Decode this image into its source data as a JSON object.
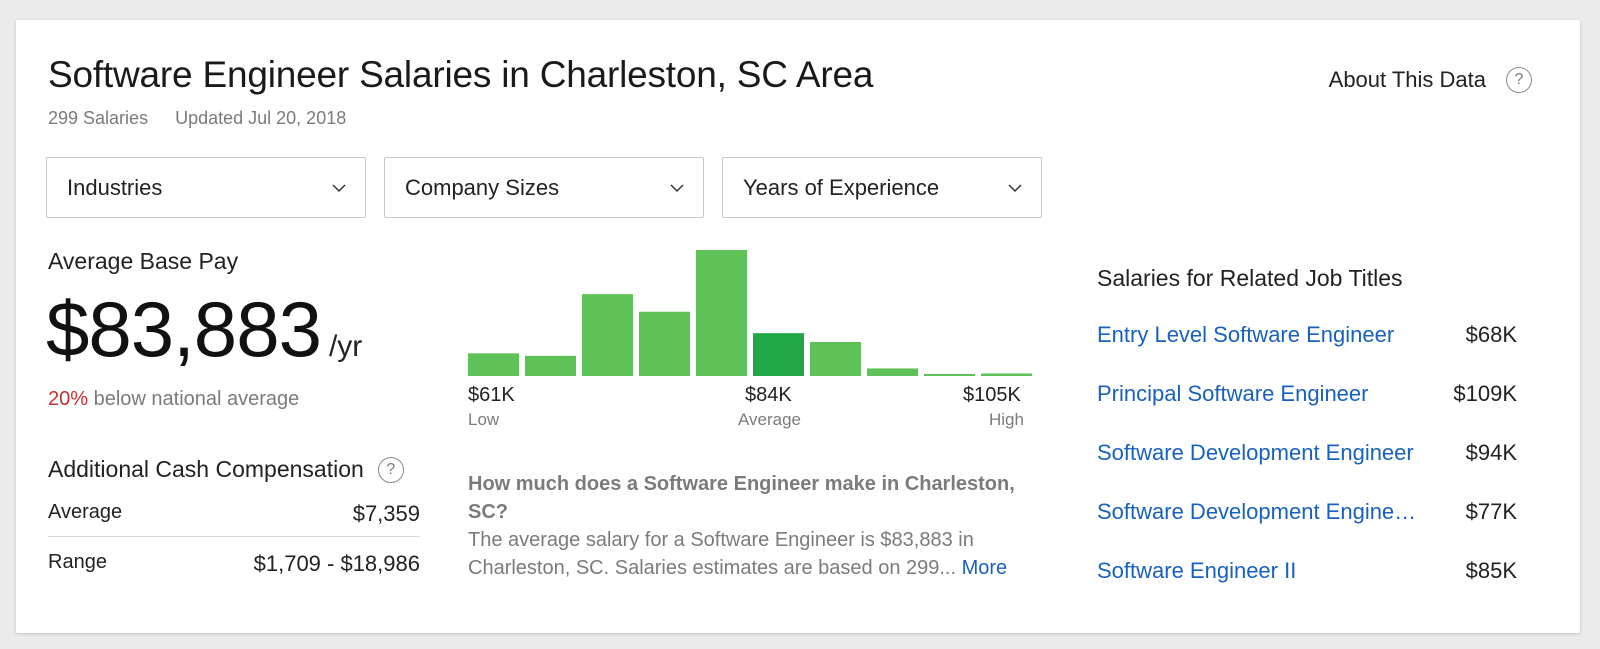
{
  "header": {
    "title": "Software Engineer Salaries in Charleston, SC Area",
    "salary_count": "299 Salaries",
    "updated": "Updated Jul 20, 2018",
    "about_link": "About This Data"
  },
  "filters": [
    {
      "label": "Industries"
    },
    {
      "label": "Company Sizes"
    },
    {
      "label": "Years of Experience"
    }
  ],
  "base_pay": {
    "label": "Average Base Pay",
    "amount": "$83,883",
    "per": "/yr",
    "comparison_pct": "20%",
    "comparison_text": "below national average",
    "comparison_color": "#c8312f"
  },
  "additional_comp": {
    "label": "Additional Cash Compensation",
    "rows": [
      {
        "label": "Average",
        "value": "$7,359"
      },
      {
        "label": "Range",
        "value": "$1,709 - $18,986"
      }
    ]
  },
  "histogram": {
    "bar_color": "#5ec259",
    "highlight_color": "#1fa845",
    "highlight_index": 5,
    "relative_heights": [
      0.18,
      0.16,
      0.65,
      0.51,
      1.0,
      0.34,
      0.27,
      0.06,
      0.01,
      0.02
    ],
    "low": {
      "value": "$61K",
      "label": "Low"
    },
    "average": {
      "value": "$84K",
      "label": "Average"
    },
    "high": {
      "value": "$105K",
      "label": "High"
    }
  },
  "faq": {
    "question": "How much does a Software Engineer make in Charleston, SC?",
    "answer": "The average salary for a Software Engineer is $83,883 in Charleston, SC. Salaries estimates are based on 299...",
    "more_link": "More"
  },
  "related": {
    "title": "Salaries for Related Job Titles",
    "items": [
      {
        "job": "Entry Level Software Engineer",
        "pay": "$68K"
      },
      {
        "job": "Principal Software Engineer",
        "pay": "$109K"
      },
      {
        "job": "Software Development Engineer",
        "pay": "$94K"
      },
      {
        "job": "Software Development Engine…",
        "pay": "$77K"
      },
      {
        "job": "Software Engineer II",
        "pay": "$85K"
      }
    ]
  },
  "colors": {
    "link": "#1861bf",
    "muted_text": "#7b7b7b"
  }
}
